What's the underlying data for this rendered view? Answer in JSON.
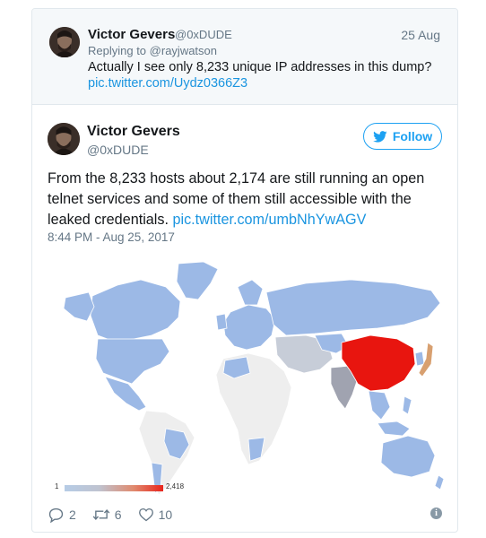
{
  "parent_tweet": {
    "name": "Victor Gevers",
    "handle": "@0xDUDE",
    "date": "25 Aug",
    "replying_prefix": "Replying to",
    "replying_to": "@rayjwatson",
    "text": "Actually I see only 8,233 unique IP addresses in this dump?",
    "link": "pic.twitter.com/Uydz0366Z3"
  },
  "tweet": {
    "name": "Victor Gevers",
    "handle": "@0xDUDE",
    "follow_label": "Follow",
    "text": "From the 8,233 hosts about 2,174 are still running an open telnet services and some of them still accessible with the leaked credentials.",
    "link": "pic.twitter.com/umbNhYwAGV",
    "timestamp": "8:44 PM - Aug 25, 2017",
    "replies": "2",
    "retweets": "6",
    "likes": "10"
  },
  "map": {
    "legend_min": "1",
    "legend_max": "2,418"
  },
  "colors": {
    "accent": "#1da1f2",
    "link": "#1b95e0",
    "muted": "#657786",
    "map_low": "#9cb9e6",
    "map_high": "#e8150f",
    "map_mid": "#a0a3b0",
    "map_none": "#eeeeee"
  }
}
